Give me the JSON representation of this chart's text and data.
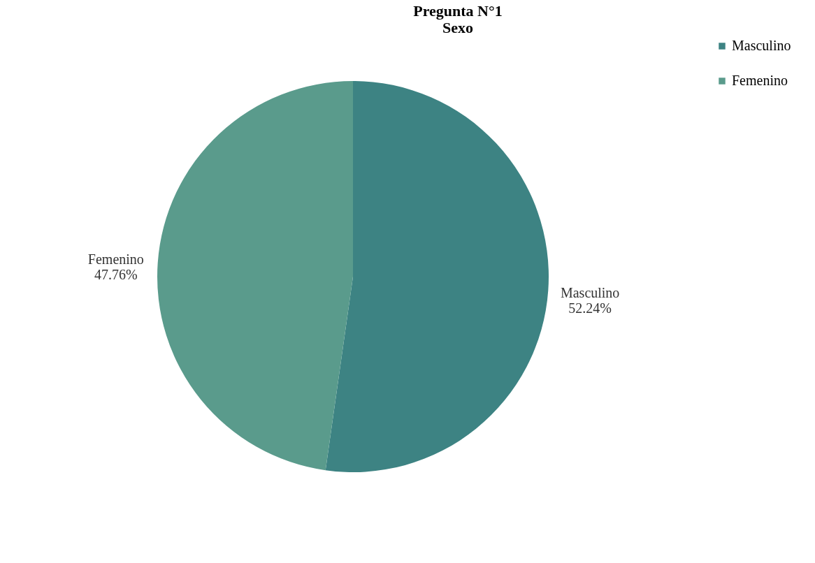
{
  "chart_data": {
    "type": "pie",
    "title": [
      "Pregunta N°1",
      "Sexo"
    ],
    "categories": [
      "Masculino",
      "Femenino"
    ],
    "values": [
      52.24,
      47.76
    ],
    "value_labels": [
      "52.24%",
      "47.76%"
    ],
    "colors": [
      "#3d8383",
      "#5a9b8c"
    ],
    "legend": "right"
  }
}
